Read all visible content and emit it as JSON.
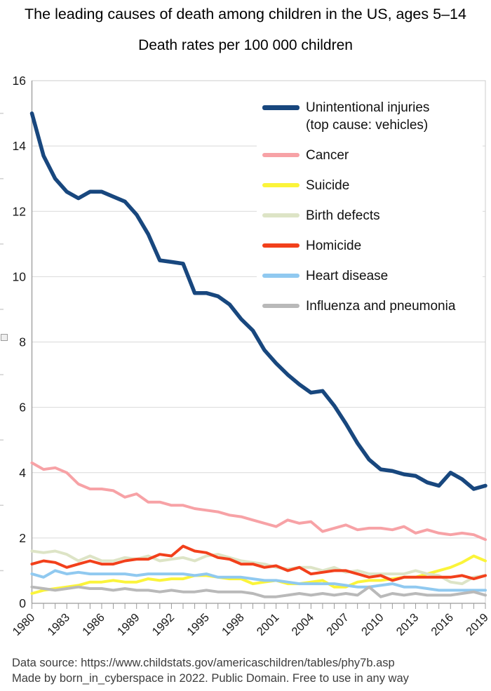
{
  "page": {
    "title": "The leading causes of death among children in the US, ages 5–14",
    "subtitle": "Death rates per 100 000 children",
    "footer_line1": "Data source: https://www.childstats.gov/americaschildren/tables/phy7b.asp",
    "footer_line2": "Made by born_in_cyberspace in 2022. Public Domain. Free to use in any way"
  },
  "chart_data": {
    "type": "line",
    "title": "The leading causes of death among children in the US, ages 5–14",
    "subtitle": "Death rates per 100 000 children",
    "xlabel": "",
    "ylabel": "",
    "x": [
      1980,
      1981,
      1982,
      1983,
      1984,
      1985,
      1986,
      1987,
      1988,
      1989,
      1990,
      1991,
      1992,
      1993,
      1994,
      1995,
      1996,
      1997,
      1998,
      1999,
      2000,
      2001,
      2002,
      2003,
      2004,
      2005,
      2006,
      2007,
      2008,
      2009,
      2010,
      2011,
      2012,
      2013,
      2014,
      2015,
      2016,
      2017,
      2018,
      2019
    ],
    "x_tick_labels": [
      1980,
      1983,
      1986,
      1989,
      1992,
      1995,
      1998,
      2001,
      2004,
      2007,
      2010,
      2013,
      2016,
      2019
    ],
    "ylim": [
      0,
      16
    ],
    "y_ticks": [
      0,
      2,
      4,
      6,
      8,
      10,
      12,
      14,
      16
    ],
    "grid": true,
    "legend_position": "top-right-overlay",
    "grid_color": "#d9d9d9",
    "axis_color": "#9b9b9b",
    "border_color": "#cdcdcd",
    "tick_label_color": "#1a1a1a",
    "series": [
      {
        "name": "unintentional-injuries",
        "label": "Unintentional injuries",
        "label2": "(top cause: vehicles)",
        "color": "#18477e",
        "line_width": 5.5,
        "values": [
          15.0,
          13.7,
          13.0,
          12.6,
          12.4,
          12.6,
          12.6,
          12.45,
          12.3,
          11.9,
          11.3,
          10.5,
          10.45,
          10.4,
          9.5,
          9.5,
          9.4,
          9.15,
          8.7,
          8.35,
          7.75,
          7.35,
          7.0,
          6.7,
          6.45,
          6.5,
          6.05,
          5.5,
          4.9,
          4.4,
          4.1,
          4.05,
          3.95,
          3.9,
          3.7,
          3.6,
          4.0,
          3.8,
          3.5,
          3.6
        ]
      },
      {
        "name": "cancer",
        "label": "Cancer",
        "color": "#f7a2a6",
        "line_width": 4,
        "values": [
          4.3,
          4.1,
          4.15,
          4.0,
          3.65,
          3.5,
          3.5,
          3.45,
          3.25,
          3.35,
          3.1,
          3.1,
          3.0,
          3.0,
          2.9,
          2.85,
          2.8,
          2.7,
          2.65,
          2.55,
          2.45,
          2.35,
          2.55,
          2.45,
          2.5,
          2.2,
          2.3,
          2.4,
          2.25,
          2.3,
          2.3,
          2.25,
          2.35,
          2.15,
          2.25,
          2.15,
          2.1,
          2.15,
          2.1,
          1.95
        ]
      },
      {
        "name": "suicide",
        "label": "Suicide",
        "color": "#fbf43a",
        "line_width": 4,
        "values": [
          0.3,
          0.4,
          0.45,
          0.5,
          0.55,
          0.65,
          0.65,
          0.7,
          0.65,
          0.65,
          0.75,
          0.7,
          0.75,
          0.75,
          0.85,
          0.85,
          0.8,
          0.75,
          0.75,
          0.6,
          0.65,
          0.7,
          0.6,
          0.6,
          0.65,
          0.7,
          0.5,
          0.5,
          0.65,
          0.7,
          0.7,
          0.75,
          0.8,
          0.8,
          0.9,
          1.0,
          1.1,
          1.25,
          1.45,
          1.3
        ]
      },
      {
        "name": "birth-defects",
        "label": "Birth defects",
        "color": "#dde4c6",
        "line_width": 4,
        "values": [
          1.6,
          1.55,
          1.6,
          1.5,
          1.3,
          1.45,
          1.3,
          1.3,
          1.4,
          1.35,
          1.45,
          1.3,
          1.35,
          1.4,
          1.3,
          1.45,
          1.5,
          1.4,
          1.3,
          1.25,
          1.2,
          1.1,
          1.05,
          1.1,
          1.1,
          1.0,
          1.1,
          0.95,
          1.0,
          0.9,
          0.9,
          0.9,
          0.9,
          1.0,
          0.9,
          0.85,
          0.65,
          0.6,
          0.8,
          0.85
        ]
      },
      {
        "name": "homicide",
        "label": "Homicide",
        "color": "#f2401b",
        "line_width": 4,
        "values": [
          1.2,
          1.3,
          1.25,
          1.1,
          1.2,
          1.3,
          1.2,
          1.2,
          1.3,
          1.35,
          1.35,
          1.5,
          1.45,
          1.75,
          1.6,
          1.55,
          1.4,
          1.35,
          1.2,
          1.2,
          1.1,
          1.15,
          1.0,
          1.1,
          0.9,
          0.95,
          1.0,
          1.0,
          0.9,
          0.8,
          0.85,
          0.7,
          0.8,
          0.8,
          0.8,
          0.8,
          0.8,
          0.85,
          0.75,
          0.85
        ]
      },
      {
        "name": "heart-disease",
        "label": "Heart disease",
        "color": "#90c9f0",
        "line_width": 4,
        "values": [
          0.9,
          0.8,
          1.0,
          0.9,
          0.95,
          0.9,
          0.9,
          0.9,
          0.9,
          0.85,
          0.9,
          0.9,
          0.9,
          0.9,
          0.85,
          0.9,
          0.8,
          0.8,
          0.8,
          0.75,
          0.7,
          0.7,
          0.65,
          0.6,
          0.6,
          0.6,
          0.6,
          0.55,
          0.5,
          0.5,
          0.55,
          0.6,
          0.5,
          0.5,
          0.45,
          0.4,
          0.4,
          0.4,
          0.4,
          0.4
        ]
      },
      {
        "name": "influenza-and-pneumonia",
        "label": "Influenza and pneumonia",
        "color": "#b9b9b9",
        "line_width": 4,
        "values": [
          0.5,
          0.45,
          0.4,
          0.45,
          0.5,
          0.45,
          0.45,
          0.4,
          0.45,
          0.4,
          0.4,
          0.35,
          0.4,
          0.35,
          0.35,
          0.4,
          0.35,
          0.35,
          0.35,
          0.3,
          0.2,
          0.2,
          0.25,
          0.3,
          0.25,
          0.3,
          0.25,
          0.3,
          0.25,
          0.5,
          0.2,
          0.3,
          0.25,
          0.3,
          0.25,
          0.25,
          0.25,
          0.3,
          0.35,
          0.25
        ]
      }
    ]
  }
}
